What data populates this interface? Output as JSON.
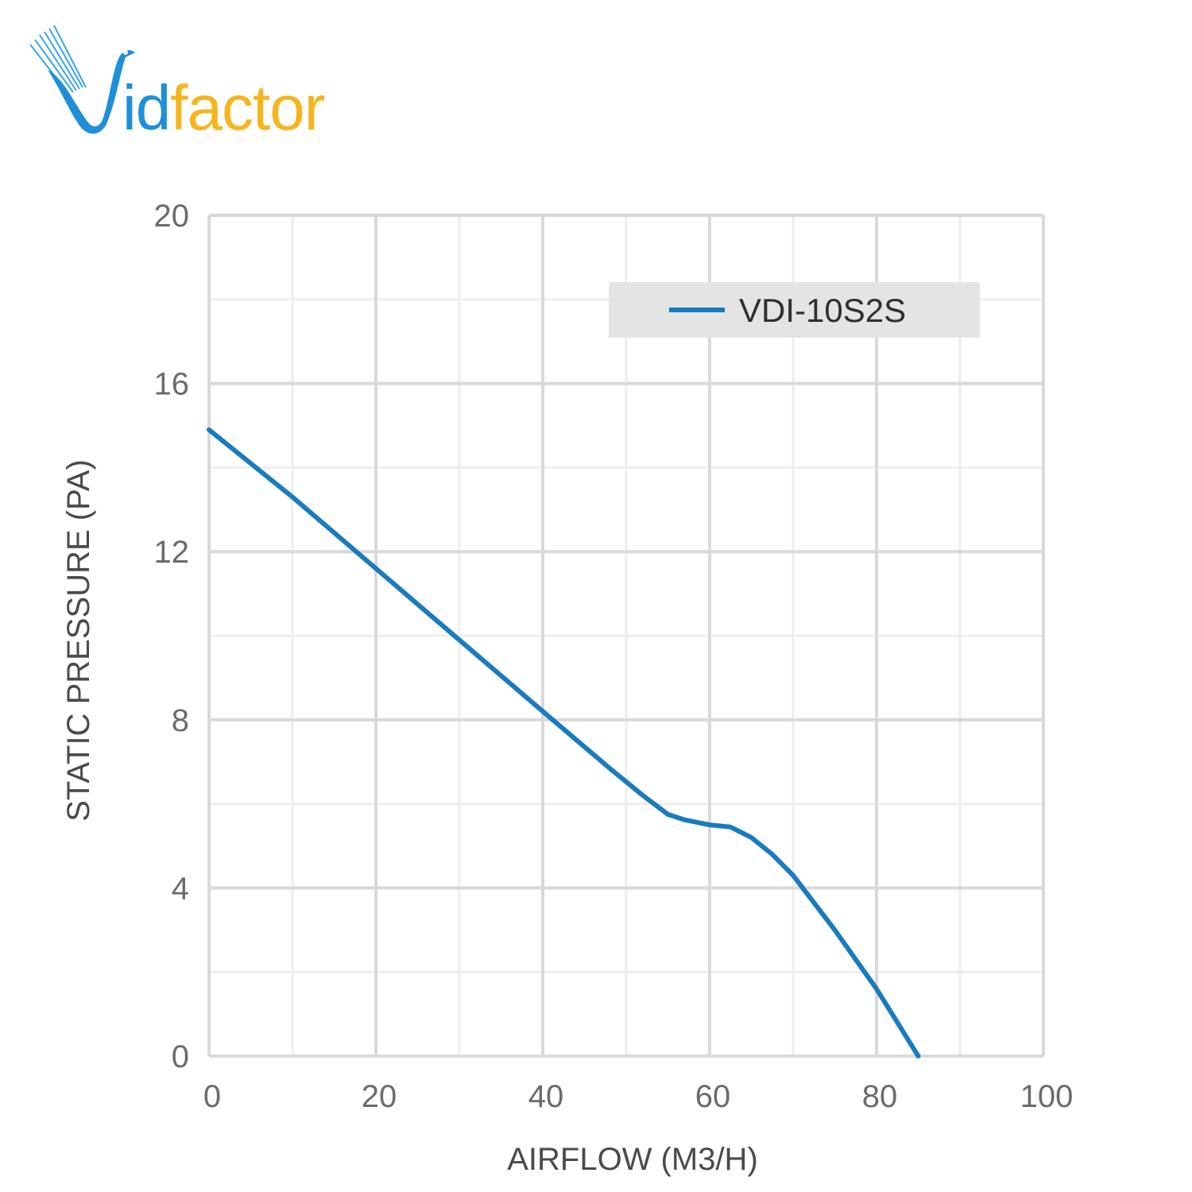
{
  "brand": {
    "logo_text_i": "id",
    "logo_text_rest": "factor",
    "colors": {
      "blue": "#1f8fd8",
      "yellow": "#f5b51f"
    }
  },
  "chart_data": {
    "type": "line",
    "title": "",
    "xlabel": "AIRFLOW (M3/H)",
    "ylabel": "STATIC PRESSURE (PA)",
    "xlim": [
      0,
      100
    ],
    "ylim": [
      0,
      20
    ],
    "x_ticks": [
      "0",
      "20",
      "40",
      "60",
      "80",
      "100"
    ],
    "y_ticks": [
      "0",
      "4",
      "8",
      "12",
      "16",
      "20"
    ],
    "grid": true,
    "legend_position": "top-right",
    "series": [
      {
        "name": "VDI-10S2S",
        "color": "#1a7bbf",
        "points": [
          [
            0,
            14.9
          ],
          [
            10,
            13.3
          ],
          [
            20,
            11.6
          ],
          [
            30,
            9.9
          ],
          [
            40,
            8.2
          ],
          [
            48,
            6.85
          ],
          [
            52,
            6.2
          ],
          [
            55,
            5.75
          ],
          [
            57,
            5.62
          ],
          [
            60,
            5.5
          ],
          [
            62.5,
            5.45
          ],
          [
            65,
            5.2
          ],
          [
            67.5,
            4.8
          ],
          [
            70,
            4.3
          ],
          [
            75,
            3.0
          ],
          [
            80,
            1.6
          ],
          [
            82.5,
            0.8
          ],
          [
            85,
            0.0
          ]
        ]
      }
    ]
  }
}
